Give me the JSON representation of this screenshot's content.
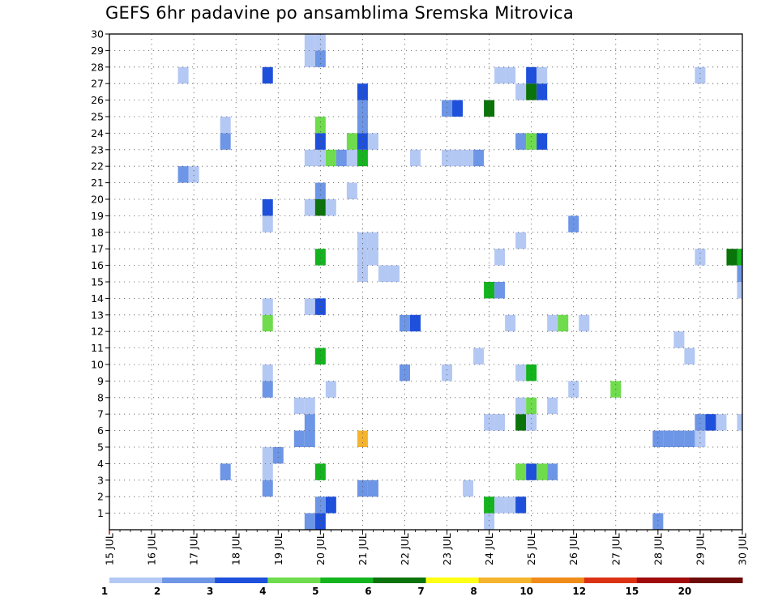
{
  "chart_data": {
    "type": "heatmap",
    "title": "GEFS 6hr padavine po ansamblima Sremska Mitrovica",
    "x_axis": {
      "tick_labels": [
        "15 JUL",
        "16 JUL",
        "17 JUL",
        "18 JUL",
        "19 JUL",
        "20 JUL",
        "21 JUL",
        "22 JUL",
        "23 JUL",
        "24 JUL",
        "25 JUL",
        "26 JUL",
        "27 JUL",
        "28 JUL",
        "29 JUL",
        "30 JUL"
      ],
      "range_days": [
        15,
        30
      ],
      "step_hours": 6
    },
    "y_axis": {
      "tick_labels": [
        "1",
        "2",
        "3",
        "4",
        "5",
        "6",
        "7",
        "8",
        "9",
        "10",
        "11",
        "12",
        "13",
        "14",
        "15",
        "16",
        "17",
        "18",
        "19",
        "20",
        "21",
        "22",
        "23",
        "24",
        "25",
        "26",
        "27",
        "28",
        "29",
        "30"
      ],
      "range": [
        0,
        30
      ]
    },
    "grid": true,
    "legend": {
      "placement": "bottom",
      "colors": [
        "#b4c8f4",
        "#6e96e6",
        "#1e50dc",
        "#6edc4c",
        "#14b41e",
        "#0a730a",
        "#ffff14",
        "#f5b42d",
        "#f08c19",
        "#dc3214",
        "#a00a0a",
        "#6e0a0a"
      ],
      "labels": [
        "1",
        "2",
        "3",
        "4",
        "5",
        "6",
        "7",
        "8",
        "10",
        "12",
        "15",
        "20"
      ]
    },
    "cells_note_format": "[member_row, day_position(days, 6h steps), color_class 1..6+]",
    "cells": [
      [
        0,
        19.75,
        2
      ],
      [
        0,
        20.0,
        3
      ],
      [
        0,
        24.0,
        1
      ],
      [
        0,
        28.0,
        2
      ],
      [
        1,
        20.0,
        2
      ],
      [
        1,
        20.25,
        3
      ],
      [
        1,
        24.0,
        5
      ],
      [
        1,
        24.25,
        1
      ],
      [
        1,
        24.5,
        1
      ],
      [
        1,
        24.75,
        3
      ],
      [
        2,
        18.75,
        2
      ],
      [
        2,
        21.0,
        2
      ],
      [
        2,
        21.25,
        2
      ],
      [
        2,
        23.5,
        1
      ],
      [
        3,
        17.75,
        2
      ],
      [
        3,
        18.75,
        1
      ],
      [
        3,
        20.0,
        5
      ],
      [
        3,
        24.75,
        4
      ],
      [
        3,
        25.0,
        3
      ],
      [
        3,
        25.25,
        4
      ],
      [
        3,
        25.5,
        2
      ],
      [
        4,
        18.75,
        1
      ],
      [
        4,
        19.0,
        2
      ],
      [
        5,
        19.5,
        2
      ],
      [
        5,
        19.75,
        2
      ],
      [
        5,
        21.0,
        8
      ],
      [
        5,
        28.0,
        2
      ],
      [
        5,
        28.25,
        2
      ],
      [
        5,
        28.5,
        2
      ],
      [
        5,
        28.75,
        2
      ],
      [
        5,
        29.0,
        1
      ],
      [
        6,
        19.75,
        2
      ],
      [
        6,
        24.0,
        1
      ],
      [
        6,
        24.25,
        1
      ],
      [
        6,
        24.75,
        6
      ],
      [
        6,
        25.0,
        1
      ],
      [
        6,
        29.0,
        2
      ],
      [
        6,
        29.25,
        3
      ],
      [
        6,
        29.5,
        1
      ],
      [
        6,
        30.0,
        1
      ],
      [
        7,
        19.5,
        1
      ],
      [
        7,
        19.75,
        1
      ],
      [
        7,
        24.75,
        1
      ],
      [
        7,
        25.0,
        4
      ],
      [
        7,
        25.5,
        1
      ],
      [
        8,
        18.75,
        2
      ],
      [
        8,
        20.25,
        1
      ],
      [
        8,
        26.0,
        1
      ],
      [
        8,
        27.0,
        4
      ],
      [
        9,
        18.75,
        1
      ],
      [
        9,
        22.0,
        2
      ],
      [
        9,
        23.0,
        1
      ],
      [
        9,
        24.75,
        1
      ],
      [
        9,
        25.0,
        5
      ],
      [
        10,
        20.0,
        5
      ],
      [
        10,
        23.75,
        1
      ],
      [
        10,
        28.75,
        1
      ],
      [
        11,
        28.5,
        1
      ],
      [
        12,
        18.75,
        4
      ],
      [
        12,
        22.0,
        2
      ],
      [
        12,
        22.25,
        3
      ],
      [
        12,
        24.5,
        1
      ],
      [
        12,
        25.5,
        1
      ],
      [
        12,
        25.75,
        4
      ],
      [
        12,
        26.25,
        1
      ],
      [
        13,
        18.75,
        1
      ],
      [
        13,
        19.75,
        1
      ],
      [
        13,
        20.0,
        3
      ],
      [
        14,
        24.0,
        5
      ],
      [
        14,
        24.25,
        2
      ],
      [
        14,
        30.0,
        1
      ],
      [
        15,
        21.0,
        1
      ],
      [
        15,
        21.5,
        1
      ],
      [
        15,
        21.75,
        1
      ],
      [
        15,
        30.0,
        2
      ],
      [
        16,
        20.0,
        5
      ],
      [
        16,
        21.0,
        1
      ],
      [
        16,
        21.25,
        1
      ],
      [
        16,
        24.25,
        1
      ],
      [
        16,
        29.0,
        1
      ],
      [
        16,
        29.75,
        6
      ],
      [
        16,
        30.0,
        5
      ],
      [
        17,
        21.0,
        1
      ],
      [
        17,
        21.25,
        1
      ],
      [
        17,
        24.75,
        1
      ],
      [
        18,
        18.75,
        1
      ],
      [
        18,
        26.0,
        2
      ],
      [
        19,
        18.75,
        3
      ],
      [
        19,
        19.75,
        1
      ],
      [
        19,
        20.0,
        6
      ],
      [
        19,
        20.25,
        1
      ],
      [
        20,
        20.0,
        2
      ],
      [
        20,
        20.75,
        1
      ],
      [
        21,
        16.75,
        2
      ],
      [
        21,
        17.0,
        1
      ],
      [
        22,
        19.75,
        1
      ],
      [
        22,
        20.0,
        1
      ],
      [
        22,
        20.25,
        4
      ],
      [
        22,
        20.5,
        2
      ],
      [
        22,
        20.75,
        1
      ],
      [
        22,
        21.0,
        5
      ],
      [
        22,
        22.25,
        1
      ],
      [
        22,
        23.0,
        1
      ],
      [
        22,
        23.25,
        1
      ],
      [
        22,
        23.5,
        1
      ],
      [
        22,
        23.75,
        2
      ],
      [
        23,
        17.75,
        2
      ],
      [
        23,
        20.0,
        3
      ],
      [
        23,
        20.75,
        4
      ],
      [
        23,
        21.0,
        3
      ],
      [
        23,
        21.25,
        1
      ],
      [
        23,
        24.75,
        2
      ],
      [
        23,
        25.0,
        4
      ],
      [
        23,
        25.25,
        3
      ],
      [
        24,
        17.75,
        1
      ],
      [
        24,
        20.0,
        4
      ],
      [
        24,
        21.0,
        2
      ],
      [
        25,
        21.0,
        2
      ],
      [
        25,
        23.0,
        2
      ],
      [
        25,
        23.25,
        3
      ],
      [
        25,
        24.0,
        6
      ],
      [
        26,
        21.0,
        3
      ],
      [
        26,
        24.75,
        1
      ],
      [
        26,
        25.0,
        6
      ],
      [
        26,
        25.25,
        3
      ],
      [
        27,
        16.75,
        1
      ],
      [
        27,
        18.75,
        3
      ],
      [
        27,
        24.25,
        1
      ],
      [
        27,
        24.5,
        1
      ],
      [
        27,
        25.0,
        3
      ],
      [
        27,
        25.25,
        1
      ],
      [
        27,
        29.0,
        1
      ],
      [
        28,
        19.75,
        1
      ],
      [
        28,
        20.0,
        2
      ],
      [
        29,
        19.75,
        1
      ],
      [
        29,
        20.0,
        1
      ]
    ]
  }
}
